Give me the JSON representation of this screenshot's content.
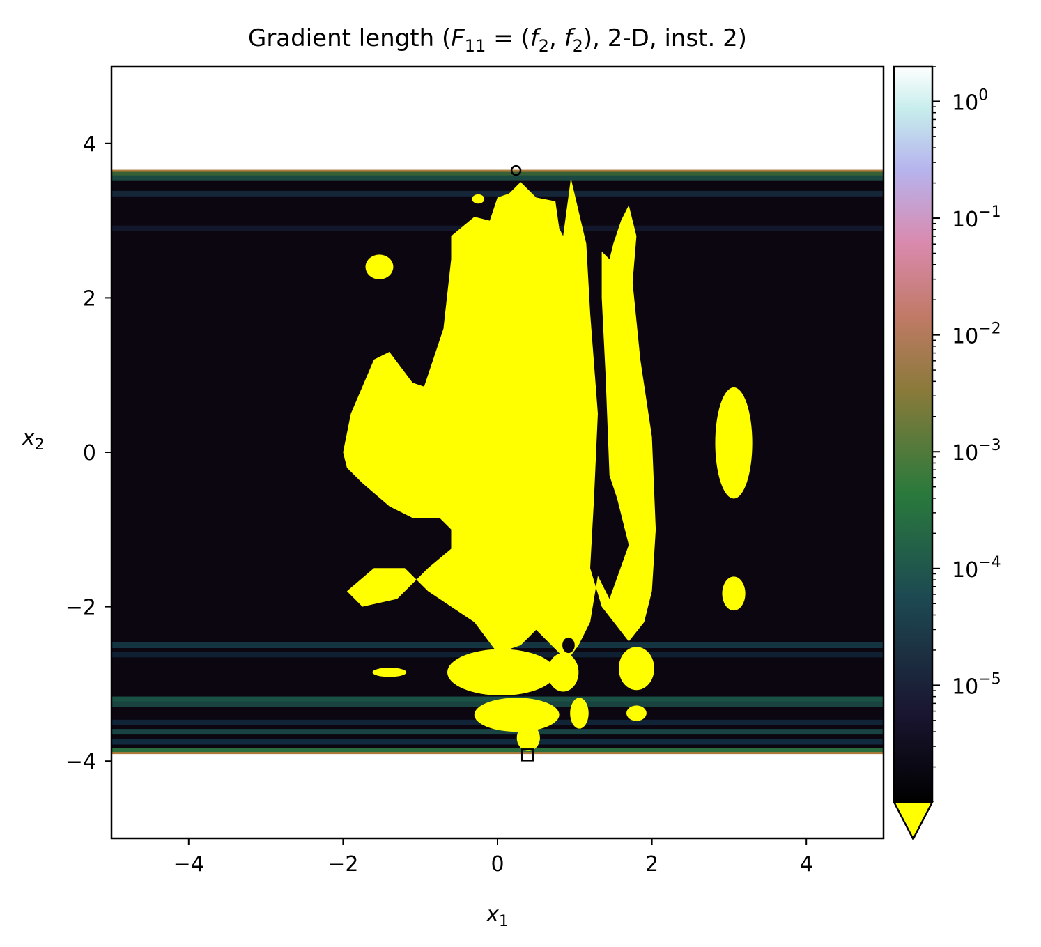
{
  "chart_data": {
    "type": "heatmap",
    "title": "Gradient length (F₁₁ = (f₂, f₂), 2-D, inst. 2)",
    "title_parts": {
      "prefix": "Gradient length (",
      "F": "F",
      "F_sub": "11",
      "eq": " = (",
      "f1": "f",
      "f1_sub": "2",
      "comma": ", ",
      "f2": "f",
      "f2_sub": "2",
      "suffix": "), 2-D, inst. 2)"
    },
    "xlabel": {
      "main": "x",
      "sub": "1"
    },
    "ylabel": {
      "main": "x",
      "sub": "2"
    },
    "xlim": [
      -5,
      5
    ],
    "ylim": [
      -5,
      5
    ],
    "xticks": [
      {
        "value": -4,
        "label": "−4"
      },
      {
        "value": -2,
        "label": "−2"
      },
      {
        "value": 0,
        "label": "0"
      },
      {
        "value": 2,
        "label": "2"
      },
      {
        "value": 4,
        "label": "4"
      }
    ],
    "yticks": [
      {
        "value": 4,
        "label": "4"
      },
      {
        "value": 2,
        "label": "2"
      },
      {
        "value": 0,
        "label": "0"
      },
      {
        "value": -2,
        "label": "−2"
      },
      {
        "value": -4,
        "label": "−4"
      }
    ],
    "data_band_y": [
      -3.9,
      3.65
    ],
    "background_color": "#0b0610",
    "below_threshold_color": "#ffff00",
    "horizontal_bands": [
      {
        "y": 3.62,
        "color": "#3c6a3a"
      },
      {
        "y": 3.55,
        "color": "#1e5048"
      },
      {
        "y": 3.35,
        "color": "#162a3e"
      },
      {
        "y": 2.9,
        "color": "#141a30"
      },
      {
        "y": -2.5,
        "color": "#163a48"
      },
      {
        "y": -2.62,
        "color": "#102436"
      },
      {
        "y": -3.2,
        "color": "#1c5a4a"
      },
      {
        "y": -3.26,
        "color": "#1a4a44"
      },
      {
        "y": -3.5,
        "color": "#12283c"
      },
      {
        "y": -3.62,
        "color": "#1a4a48"
      },
      {
        "y": -3.75,
        "color": "#123044"
      },
      {
        "y": -3.87,
        "color": "#2e7a46"
      }
    ],
    "regions": [
      {
        "shape": "main-blob",
        "points": [
          [
            -2.0,
            0.0
          ],
          [
            -1.9,
            0.5
          ],
          [
            -1.6,
            1.2
          ],
          [
            -1.4,
            1.3
          ],
          [
            -1.1,
            0.9
          ],
          [
            -0.95,
            0.85
          ],
          [
            -0.7,
            1.6
          ],
          [
            -0.6,
            2.5
          ],
          [
            -0.6,
            2.8
          ],
          [
            -0.3,
            3.05
          ],
          [
            -0.1,
            3.0
          ],
          [
            0.0,
            3.3
          ],
          [
            0.15,
            3.35
          ],
          [
            0.3,
            3.5
          ],
          [
            0.5,
            3.3
          ],
          [
            0.75,
            3.25
          ],
          [
            0.8,
            2.9
          ],
          [
            0.85,
            2.8
          ],
          [
            0.95,
            3.55
          ],
          [
            1.15,
            2.7
          ],
          [
            1.2,
            1.8
          ],
          [
            1.3,
            0.5
          ],
          [
            1.25,
            -0.6
          ],
          [
            1.2,
            -1.5
          ],
          [
            1.35,
            -2.0
          ],
          [
            1.7,
            -2.45
          ],
          [
            1.9,
            -2.2
          ],
          [
            2.0,
            -1.8
          ],
          [
            2.05,
            -1.0
          ],
          [
            2.0,
            0.2
          ],
          [
            1.85,
            1.2
          ],
          [
            1.75,
            2.2
          ],
          [
            1.8,
            2.8
          ],
          [
            1.7,
            3.2
          ],
          [
            1.6,
            3.0
          ],
          [
            1.5,
            2.7
          ],
          [
            1.45,
            2.5
          ],
          [
            1.35,
            2.6
          ],
          [
            1.35,
            2.0
          ],
          [
            1.4,
            1.0
          ],
          [
            1.45,
            -0.3
          ],
          [
            1.55,
            -0.6
          ],
          [
            1.7,
            -1.2
          ],
          [
            1.45,
            -1.9
          ],
          [
            1.3,
            -1.6
          ],
          [
            1.2,
            -2.2
          ],
          [
            1.05,
            -2.5
          ],
          [
            0.9,
            -2.7
          ],
          [
            0.7,
            -2.5
          ],
          [
            0.5,
            -2.3
          ],
          [
            0.3,
            -2.5
          ],
          [
            0.0,
            -2.6
          ],
          [
            -0.3,
            -2.2
          ],
          [
            -0.9,
            -1.8
          ],
          [
            -1.2,
            -1.5
          ],
          [
            -1.6,
            -1.5
          ],
          [
            -1.95,
            -1.8
          ],
          [
            -1.75,
            -2.0
          ],
          [
            -1.3,
            -1.9
          ],
          [
            -0.9,
            -1.5
          ],
          [
            -0.6,
            -1.25
          ],
          [
            -0.6,
            -1.0
          ],
          [
            -0.75,
            -0.85
          ],
          [
            -1.1,
            -0.85
          ],
          [
            -1.4,
            -0.7
          ],
          [
            -1.75,
            -0.4
          ],
          [
            -1.95,
            -0.2
          ]
        ]
      },
      {
        "shape": "ellipse",
        "cx": -1.53,
        "cy": 2.4,
        "rx": 0.18,
        "ry": 0.16
      },
      {
        "shape": "ellipse",
        "cx": -0.25,
        "cy": 3.28,
        "rx": 0.08,
        "ry": 0.06
      },
      {
        "shape": "ellipse",
        "cx": 3.06,
        "cy": 0.12,
        "rx": 0.24,
        "ry": 0.72
      },
      {
        "shape": "ellipse",
        "cx": 3.06,
        "cy": -1.83,
        "rx": 0.15,
        "ry": 0.22
      },
      {
        "shape": "ellipse",
        "cx": -1.4,
        "cy": -2.85,
        "rx": 0.22,
        "ry": 0.06
      },
      {
        "shape": "ellipse",
        "cx": 0.05,
        "cy": -2.85,
        "rx": 0.7,
        "ry": 0.3
      },
      {
        "shape": "ellipse",
        "cx": 0.85,
        "cy": -2.85,
        "rx": 0.2,
        "ry": 0.25
      },
      {
        "shape": "ellipse",
        "cx": 1.8,
        "cy": -2.8,
        "rx": 0.23,
        "ry": 0.28
      },
      {
        "shape": "ellipse",
        "cx": 1.8,
        "cy": -3.38,
        "rx": 0.13,
        "ry": 0.1
      },
      {
        "shape": "ellipse",
        "cx": 0.25,
        "cy": -3.4,
        "rx": 0.55,
        "ry": 0.22
      },
      {
        "shape": "ellipse",
        "cx": 1.06,
        "cy": -3.38,
        "rx": 0.12,
        "ry": 0.2
      },
      {
        "shape": "ellipse",
        "cx": 0.4,
        "cy": -3.7,
        "rx": 0.15,
        "ry": 0.17
      }
    ],
    "holes": [
      {
        "shape": "ellipse",
        "cx": 1.45,
        "cy": -1.15,
        "rx": 0.14,
        "ry": 0.55
      },
      {
        "shape": "ellipse",
        "cx": 0.92,
        "cy": -2.5,
        "rx": 0.08,
        "ry": 0.1
      }
    ],
    "markers": [
      {
        "shape": "circle",
        "x": 0.24,
        "y": 3.65
      },
      {
        "shape": "square",
        "x": 0.39,
        "y": -3.92
      }
    ],
    "colorbar": {
      "scale": "log",
      "range": [
        1e-06,
        2.0
      ],
      "ticks": [
        {
          "value": 1.0,
          "base": "10",
          "exp": "0"
        },
        {
          "value": 0.1,
          "base": "10",
          "exp": "−1"
        },
        {
          "value": 0.01,
          "base": "10",
          "exp": "−2"
        },
        {
          "value": 0.001,
          "base": "10",
          "exp": "−3"
        },
        {
          "value": 0.0001,
          "base": "10",
          "exp": "−4"
        },
        {
          "value": 1e-05,
          "base": "10",
          "exp": "−5"
        }
      ],
      "stops": [
        {
          "t": 0.0,
          "color": "#000000"
        },
        {
          "t": 0.12,
          "color": "#1a1530"
        },
        {
          "t": 0.28,
          "color": "#1d4a52"
        },
        {
          "t": 0.42,
          "color": "#2a7a3c"
        },
        {
          "t": 0.56,
          "color": "#8a7a3a"
        },
        {
          "t": 0.66,
          "color": "#c07a66"
        },
        {
          "t": 0.76,
          "color": "#d98aae"
        },
        {
          "t": 0.86,
          "color": "#b6b4ee"
        },
        {
          "t": 0.94,
          "color": "#c6ecec"
        },
        {
          "t": 1.0,
          "color": "#ffffff"
        }
      ],
      "extend_min_color": "#ffff00"
    }
  }
}
